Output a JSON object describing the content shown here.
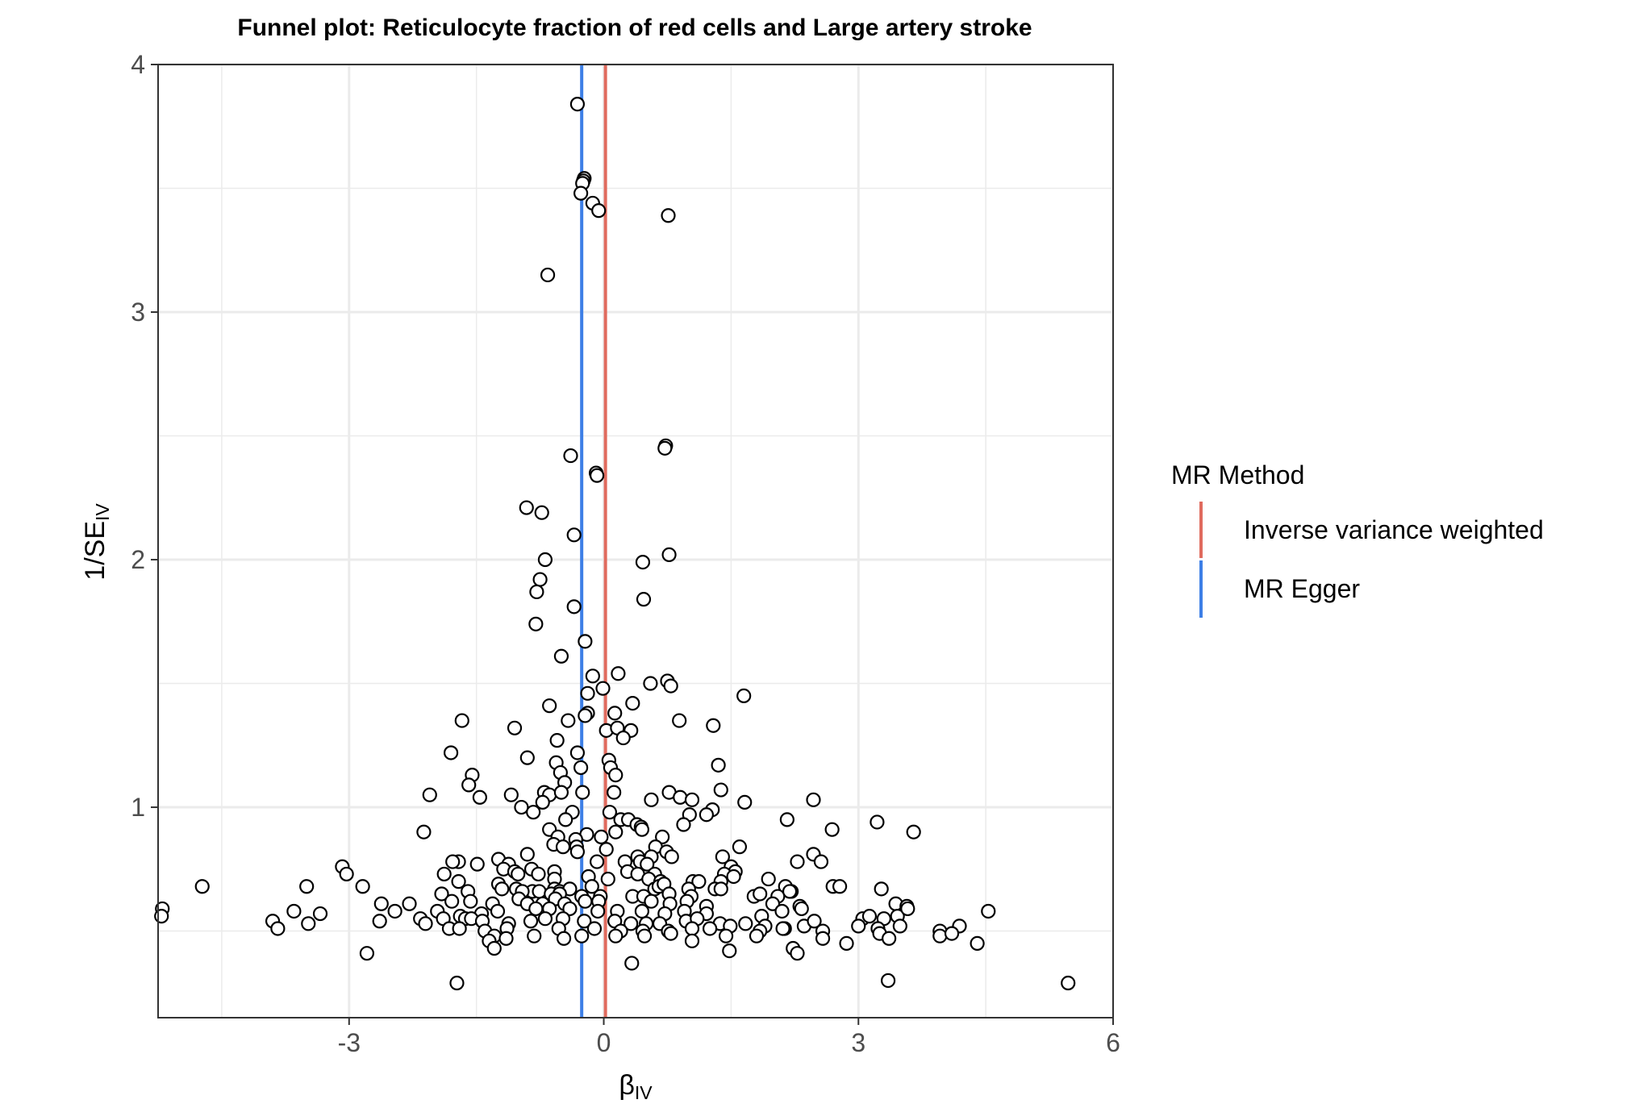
{
  "chart_data": {
    "type": "scatter",
    "title": "Funnel plot: Reticulocyte fraction of red cells and Large artery stroke",
    "xlabel": "β",
    "xlabel_sub": "IV",
    "ylabel": "1/SE",
    "ylabel_sub": "IV",
    "xlim": [
      -5.25,
      6.0
    ],
    "ylim": [
      0.15,
      4.0
    ],
    "xticks": [
      -3,
      0,
      3,
      6
    ],
    "xtick_labels": [
      "-3",
      "0",
      "3",
      "6"
    ],
    "yticks": [
      1,
      2,
      3,
      4
    ],
    "ytick_labels": [
      "1",
      "2",
      "3",
      "4"
    ],
    "grid": true,
    "legend": {
      "title": "MR Method",
      "position": "right",
      "entries": [
        {
          "label": "Inverse variance weighted",
          "color": "#e06b5e",
          "x": 0.02
        },
        {
          "label": "MR Egger",
          "color": "#3d7fe6",
          "x": -0.26
        }
      ]
    },
    "points": [
      [
        -0.31,
        3.84
      ],
      [
        -0.23,
        3.54
      ],
      [
        -0.24,
        3.53
      ],
      [
        -0.25,
        3.52
      ],
      [
        -0.27,
        3.48
      ],
      [
        -0.13,
        3.44
      ],
      [
        -0.06,
        3.41
      ],
      [
        0.76,
        3.39
      ],
      [
        -0.66,
        3.15
      ],
      [
        0.73,
        2.46
      ],
      [
        0.72,
        2.45
      ],
      [
        -0.39,
        2.42
      ],
      [
        -0.09,
        2.35
      ],
      [
        -0.08,
        2.34
      ],
      [
        -0.91,
        2.21
      ],
      [
        -0.73,
        2.19
      ],
      [
        -0.35,
        2.1
      ],
      [
        0.77,
        2.02
      ],
      [
        -0.69,
        2.0
      ],
      [
        0.46,
        1.99
      ],
      [
        -0.75,
        1.92
      ],
      [
        -0.79,
        1.87
      ],
      [
        0.47,
        1.84
      ],
      [
        -0.35,
        1.81
      ],
      [
        -0.8,
        1.74
      ],
      [
        -0.22,
        1.67
      ],
      [
        -0.5,
        1.61
      ],
      [
        -0.13,
        1.53
      ],
      [
        0.17,
        1.54
      ],
      [
        0.55,
        1.5
      ],
      [
        0.75,
        1.51
      ],
      [
        0.79,
        1.49
      ],
      [
        -0.01,
        1.48
      ],
      [
        -0.19,
        1.46
      ],
      [
        1.65,
        1.45
      ],
      [
        0.34,
        1.42
      ],
      [
        -0.64,
        1.41
      ],
      [
        -1.67,
        1.35
      ],
      [
        -0.19,
        1.38
      ],
      [
        -0.22,
        1.37
      ],
      [
        -0.42,
        1.35
      ],
      [
        0.13,
        1.38
      ],
      [
        0.89,
        1.35
      ],
      [
        -1.05,
        1.32
      ],
      [
        0.03,
        1.31
      ],
      [
        0.16,
        1.32
      ],
      [
        0.32,
        1.31
      ],
      [
        1.29,
        1.33
      ],
      [
        -0.55,
        1.27
      ],
      [
        0.23,
        1.28
      ],
      [
        -0.31,
        1.22
      ],
      [
        -1.8,
        1.22
      ],
      [
        -0.9,
        1.2
      ],
      [
        -0.56,
        1.18
      ],
      [
        0.06,
        1.19
      ],
      [
        -0.27,
        1.16
      ],
      [
        0.08,
        1.16
      ],
      [
        1.35,
        1.17
      ],
      [
        -0.51,
        1.14
      ],
      [
        0.14,
        1.13
      ],
      [
        -1.55,
        1.13
      ],
      [
        -1.59,
        1.09
      ],
      [
        -0.46,
        1.1
      ],
      [
        -0.25,
        1.06
      ],
      [
        0.12,
        1.06
      ],
      [
        -1.46,
        1.04
      ],
      [
        -2.05,
        1.05
      ],
      [
        -1.09,
        1.05
      ],
      [
        -0.7,
        1.06
      ],
      [
        -0.64,
        1.05
      ],
      [
        -0.5,
        1.06
      ],
      [
        0.77,
        1.06
      ],
      [
        0.9,
        1.04
      ],
      [
        0.56,
        1.03
      ],
      [
        1.38,
        1.07
      ],
      [
        -0.97,
        1.0
      ],
      [
        -0.72,
        1.02
      ],
      [
        1.04,
        1.03
      ],
      [
        1.66,
        1.02
      ],
      [
        2.47,
        1.03
      ],
      [
        1.28,
        0.99
      ],
      [
        1.21,
        0.97
      ],
      [
        1.01,
        0.97
      ],
      [
        -0.83,
        0.98
      ],
      [
        -0.37,
        0.98
      ],
      [
        0.07,
        0.98
      ],
      [
        -0.45,
        0.95
      ],
      [
        0.2,
        0.95
      ],
      [
        0.29,
        0.95
      ],
      [
        0.94,
        0.93
      ],
      [
        2.16,
        0.95
      ],
      [
        3.22,
        0.94
      ],
      [
        3.65,
        0.9
      ],
      [
        2.69,
        0.91
      ],
      [
        -2.12,
        0.9
      ],
      [
        -0.64,
        0.91
      ],
      [
        -0.2,
        0.89
      ],
      [
        0.14,
        0.9
      ],
      [
        0.39,
        0.93
      ],
      [
        0.44,
        0.92
      ],
      [
        0.45,
        0.91
      ],
      [
        -0.54,
        0.88
      ],
      [
        -0.33,
        0.87
      ],
      [
        -0.03,
        0.88
      ],
      [
        0.69,
        0.88
      ],
      [
        -0.59,
        0.85
      ],
      [
        -0.48,
        0.84
      ],
      [
        -0.32,
        0.84
      ],
      [
        0.03,
        0.83
      ],
      [
        0.61,
        0.84
      ],
      [
        0.74,
        0.82
      ],
      [
        1.6,
        0.84
      ],
      [
        -0.31,
        0.82
      ],
      [
        -0.9,
        0.81
      ],
      [
        0.4,
        0.8
      ],
      [
        0.56,
        0.8
      ],
      [
        0.8,
        0.8
      ],
      [
        1.4,
        0.8
      ],
      [
        2.47,
        0.81
      ],
      [
        -1.24,
        0.79
      ],
      [
        -1.71,
        0.78
      ],
      [
        -1.12,
        0.77
      ],
      [
        -1.49,
        0.77
      ],
      [
        -1.78,
        0.78
      ],
      [
        -0.08,
        0.78
      ],
      [
        0.43,
        0.78
      ],
      [
        0.25,
        0.78
      ],
      [
        0.51,
        0.77
      ],
      [
        1.5,
        0.76
      ],
      [
        2.28,
        0.78
      ],
      [
        2.56,
        0.78
      ],
      [
        -3.08,
        0.76
      ],
      [
        -0.85,
        0.75
      ],
      [
        -1.18,
        0.75
      ],
      [
        0.28,
        0.74
      ],
      [
        -0.58,
        0.74
      ],
      [
        0.4,
        0.73
      ],
      [
        0.6,
        0.73
      ],
      [
        1.55,
        0.74
      ],
      [
        1.42,
        0.73
      ],
      [
        1.53,
        0.72
      ],
      [
        -1.88,
        0.73
      ],
      [
        -1.05,
        0.74
      ],
      [
        -1.01,
        0.73
      ],
      [
        -0.77,
        0.73
      ],
      [
        -3.03,
        0.73
      ],
      [
        -1.24,
        0.69
      ],
      [
        -1.71,
        0.7
      ],
      [
        -0.58,
        0.71
      ],
      [
        -0.18,
        0.72
      ],
      [
        0.05,
        0.71
      ],
      [
        0.53,
        0.71
      ],
      [
        0.67,
        0.7
      ],
      [
        1.05,
        0.7
      ],
      [
        1.12,
        0.7
      ],
      [
        1.38,
        0.7
      ],
      [
        1.94,
        0.71
      ],
      [
        -1.03,
        0.67
      ],
      [
        -1.2,
        0.67
      ],
      [
        -0.84,
        0.66
      ],
      [
        -0.76,
        0.66
      ],
      [
        -0.58,
        0.67
      ],
      [
        -0.52,
        0.66
      ],
      [
        -0.4,
        0.67
      ],
      [
        -0.14,
        0.68
      ],
      [
        0.6,
        0.67
      ],
      [
        0.65,
        0.68
      ],
      [
        0.71,
        0.69
      ],
      [
        1.0,
        0.67
      ],
      [
        1.31,
        0.67
      ],
      [
        1.38,
        0.67
      ],
      [
        2.14,
        0.68
      ],
      [
        2.21,
        0.66
      ],
      [
        2.7,
        0.68
      ],
      [
        2.78,
        0.68
      ],
      [
        3.27,
        0.67
      ],
      [
        -4.73,
        0.68
      ],
      [
        -3.5,
        0.68
      ],
      [
        -2.84,
        0.68
      ],
      [
        -1.91,
        0.65
      ],
      [
        -1.6,
        0.66
      ],
      [
        -0.96,
        0.66
      ],
      [
        -0.62,
        0.65
      ],
      [
        -0.52,
        0.65
      ],
      [
        -0.26,
        0.64
      ],
      [
        -0.04,
        0.64
      ],
      [
        0.34,
        0.64
      ],
      [
        0.47,
        0.64
      ],
      [
        0.77,
        0.65
      ],
      [
        1.03,
        0.64
      ],
      [
        1.77,
        0.64
      ],
      [
        1.84,
        0.65
      ],
      [
        2.05,
        0.64
      ],
      [
        2.19,
        0.66
      ],
      [
        -2.62,
        0.61
      ],
      [
        -2.29,
        0.61
      ],
      [
        -1.79,
        0.62
      ],
      [
        -1.57,
        0.62
      ],
      [
        -1.31,
        0.61
      ],
      [
        -1.0,
        0.63
      ],
      [
        -0.9,
        0.61
      ],
      [
        -0.72,
        0.61
      ],
      [
        -0.57,
        0.63
      ],
      [
        -0.46,
        0.61
      ],
      [
        -0.22,
        0.62
      ],
      [
        -0.06,
        0.62
      ],
      [
        0.56,
        0.62
      ],
      [
        0.78,
        0.61
      ],
      [
        0.98,
        0.62
      ],
      [
        1.21,
        0.6
      ],
      [
        1.99,
        0.61
      ],
      [
        2.31,
        0.6
      ],
      [
        3.44,
        0.61
      ],
      [
        3.57,
        0.6
      ],
      [
        -5.2,
        0.59
      ],
      [
        -5.21,
        0.56
      ],
      [
        -3.65,
        0.58
      ],
      [
        -3.34,
        0.57
      ],
      [
        -2.46,
        0.58
      ],
      [
        -1.96,
        0.58
      ],
      [
        -1.69,
        0.56
      ],
      [
        -1.44,
        0.57
      ],
      [
        -1.25,
        0.58
      ],
      [
        -0.8,
        0.59
      ],
      [
        -0.64,
        0.59
      ],
      [
        -0.4,
        0.59
      ],
      [
        -0.07,
        0.58
      ],
      [
        0.16,
        0.58
      ],
      [
        0.45,
        0.58
      ],
      [
        0.72,
        0.57
      ],
      [
        0.95,
        0.58
      ],
      [
        1.21,
        0.57
      ],
      [
        1.86,
        0.56
      ],
      [
        2.1,
        0.58
      ],
      [
        2.33,
        0.59
      ],
      [
        3.05,
        0.55
      ],
      [
        3.13,
        0.56
      ],
      [
        3.3,
        0.55
      ],
      [
        3.46,
        0.56
      ],
      [
        3.58,
        0.59
      ],
      [
        4.53,
        0.58
      ],
      [
        -3.9,
        0.54
      ],
      [
        -3.48,
        0.53
      ],
      [
        -2.64,
        0.54
      ],
      [
        -2.16,
        0.55
      ],
      [
        -2.1,
        0.53
      ],
      [
        -1.89,
        0.55
      ],
      [
        -1.63,
        0.55
      ],
      [
        -1.56,
        0.55
      ],
      [
        -1.43,
        0.54
      ],
      [
        -1.12,
        0.53
      ],
      [
        -0.86,
        0.54
      ],
      [
        -0.69,
        0.55
      ],
      [
        -0.48,
        0.55
      ],
      [
        -0.23,
        0.54
      ],
      [
        0.13,
        0.54
      ],
      [
        0.32,
        0.53
      ],
      [
        0.5,
        0.53
      ],
      [
        0.66,
        0.53
      ],
      [
        0.97,
        0.54
      ],
      [
        1.1,
        0.55
      ],
      [
        1.37,
        0.53
      ],
      [
        1.49,
        0.52
      ],
      [
        1.67,
        0.53
      ],
      [
        1.9,
        0.52
      ],
      [
        2.13,
        0.51
      ],
      [
        2.36,
        0.52
      ],
      [
        2.48,
        0.54
      ],
      [
        3.0,
        0.52
      ],
      [
        3.23,
        0.51
      ],
      [
        3.49,
        0.52
      ],
      [
        3.96,
        0.5
      ],
      [
        4.19,
        0.52
      ],
      [
        -3.84,
        0.51
      ],
      [
        -1.82,
        0.51
      ],
      [
        -1.7,
        0.51
      ],
      [
        -1.4,
        0.5
      ],
      [
        -1.14,
        0.51
      ],
      [
        -0.53,
        0.51
      ],
      [
        -0.11,
        0.51
      ],
      [
        0.2,
        0.5
      ],
      [
        0.46,
        0.5
      ],
      [
        0.76,
        0.5
      ],
      [
        1.04,
        0.51
      ],
      [
        1.25,
        0.51
      ],
      [
        1.84,
        0.5
      ],
      [
        2.11,
        0.51
      ],
      [
        2.58,
        0.5
      ],
      [
        3.25,
        0.49
      ],
      [
        3.96,
        0.48
      ],
      [
        4.1,
        0.49
      ],
      [
        -1.29,
        0.48
      ],
      [
        -0.82,
        0.48
      ],
      [
        -0.47,
        0.47
      ],
      [
        -0.26,
        0.48
      ],
      [
        0.14,
        0.48
      ],
      [
        0.48,
        0.48
      ],
      [
        0.79,
        0.49
      ],
      [
        1.04,
        0.46
      ],
      [
        1.44,
        0.48
      ],
      [
        1.8,
        0.48
      ],
      [
        2.58,
        0.47
      ],
      [
        2.86,
        0.45
      ],
      [
        3.36,
        0.47
      ],
      [
        4.4,
        0.45
      ],
      [
        -1.35,
        0.46
      ],
      [
        -1.15,
        0.47
      ],
      [
        -1.29,
        0.43
      ],
      [
        1.48,
        0.42
      ],
      [
        2.23,
        0.43
      ],
      [
        2.28,
        0.41
      ],
      [
        -2.79,
        0.41
      ],
      [
        0.33,
        0.37
      ],
      [
        -1.73,
        0.29
      ],
      [
        3.35,
        0.3
      ],
      [
        5.47,
        0.29
      ]
    ]
  }
}
